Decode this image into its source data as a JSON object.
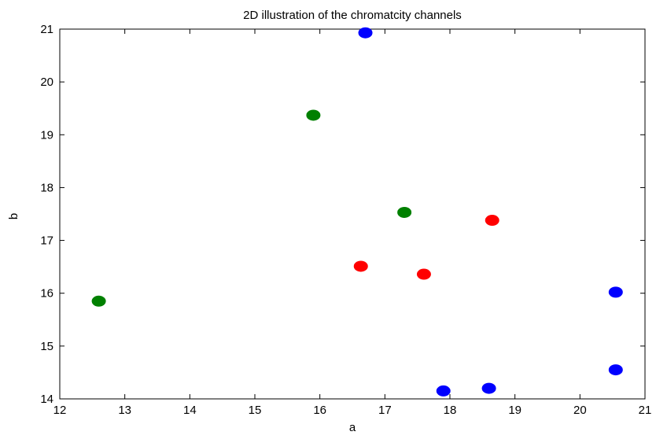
{
  "chart_data": {
    "type": "scatter",
    "title": "2D illustration of the chromatcity channels",
    "xlabel": "a",
    "ylabel": "b",
    "xlim": [
      12,
      21
    ],
    "ylim": [
      14,
      21
    ],
    "xticks": [
      "12",
      "13",
      "14",
      "15",
      "16",
      "17",
      "18",
      "19",
      "20",
      "21"
    ],
    "yticks": [
      "14",
      "15",
      "16",
      "17",
      "18",
      "19",
      "20",
      "21"
    ],
    "grid": false,
    "legend": "none",
    "series": [
      {
        "color": "#008000",
        "points": [
          {
            "x": 12.6,
            "y": 15.85
          },
          {
            "x": 15.9,
            "y": 19.37
          },
          {
            "x": 17.3,
            "y": 17.53
          }
        ]
      },
      {
        "color": "#ff0000",
        "points": [
          {
            "x": 16.63,
            "y": 16.51
          },
          {
            "x": 17.6,
            "y": 16.36
          },
          {
            "x": 18.65,
            "y": 17.38
          }
        ]
      },
      {
        "color": "#0000ff",
        "points": [
          {
            "x": 16.7,
            "y": 20.93
          },
          {
            "x": 17.9,
            "y": 14.15
          },
          {
            "x": 18.6,
            "y": 14.2
          },
          {
            "x": 20.55,
            "y": 14.55
          },
          {
            "x": 20.55,
            "y": 16.02
          }
        ]
      }
    ]
  }
}
